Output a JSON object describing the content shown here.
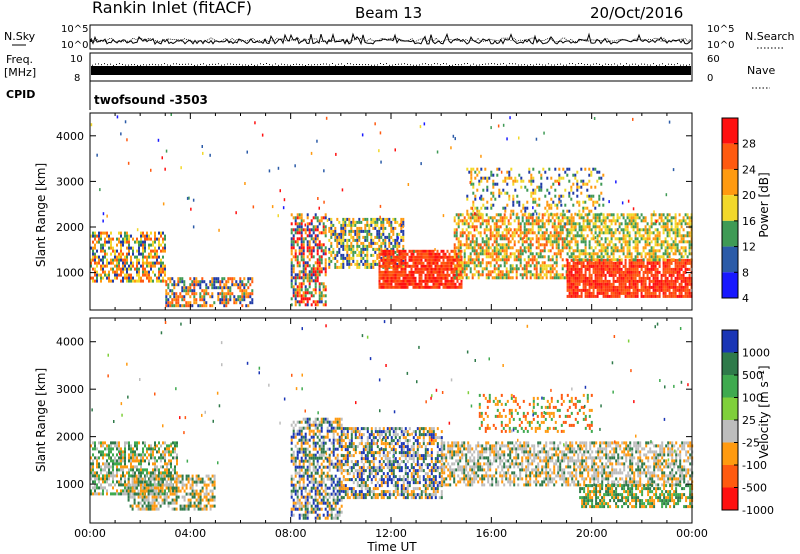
{
  "header": {
    "station": "Rankin Inlet (fitACF)",
    "beam": "Beam 13",
    "date": "20/Oct/2016"
  },
  "top_panels": {
    "nsky_label": "N.Sky",
    "nsearch_label": "N.Search",
    "nsky_ticks": [
      "10^5",
      "10^0"
    ],
    "nsearch_ticks": [
      "10^5",
      "10^0"
    ],
    "freq_label": "Freq.",
    "freq_unit": "[MHz]",
    "freq_ticks": [
      "10",
      "8"
    ],
    "nave_label": "Nave",
    "nave_ticks": [
      "60",
      "0"
    ],
    "cpid_label": "CPID",
    "cpid_value": "twofsound -3503"
  },
  "chart_data": [
    {
      "type": "heatmap",
      "title": "",
      "xlabel": "",
      "ylabel": "Slant Range [km]",
      "xlim": [
        0,
        24
      ],
      "ylim": [
        180,
        4500
      ],
      "y_ticks": [
        "4000",
        "3000",
        "2000",
        "1000"
      ],
      "colorbar": {
        "label": "Power [dB]",
        "ticks": [
          "28",
          "24",
          "20",
          "16",
          "12",
          "8",
          "4"
        ],
        "colors": [
          "#ff1010",
          "#ff5a10",
          "#ff9a10",
          "#f2d82a",
          "#3f9a55",
          "#2b5ba8",
          "#1818ff"
        ]
      },
      "regions": [
        {
          "x": [
            0.0,
            3.0
          ],
          "y": [
            800,
            1900
          ],
          "value": "mixed",
          "palette": [
            "#ff9a10",
            "#3f9a55",
            "#ff5a10",
            "#f2d82a",
            "#1f3aa8"
          ]
        },
        {
          "x": [
            3.0,
            6.5
          ],
          "y": [
            250,
            900
          ],
          "value": "mixed",
          "palette": [
            "#ff5a10",
            "#1f3aa8",
            "#3f9a55",
            "#ff9a10"
          ]
        },
        {
          "x": [
            8.0,
            9.4
          ],
          "y": [
            300,
            2300
          ],
          "value": "mixed",
          "palette": [
            "#1f3aa8",
            "#3f9a55",
            "#ff9a10",
            "#ff1010"
          ]
        },
        {
          "x": [
            9.5,
            12.5
          ],
          "y": [
            1100,
            2200
          ],
          "value": "mixed",
          "palette": [
            "#3f9a55",
            "#f2d82a",
            "#1f3aa8",
            "#ff9a10"
          ]
        },
        {
          "x": [
            11.5,
            14.8
          ],
          "y": [
            700,
            1500
          ],
          "value": "strong",
          "palette": [
            "#ff1010",
            "#ff5a10",
            "#ff3a10"
          ]
        },
        {
          "x": [
            14.5,
            19.0
          ],
          "y": [
            900,
            2300
          ],
          "value": "mixed",
          "palette": [
            "#3f9a55",
            "#ff9a10",
            "#f2d82a",
            "#ff5a10"
          ]
        },
        {
          "x": [
            19.0,
            24.0
          ],
          "y": [
            500,
            1300
          ],
          "value": "strong",
          "palette": [
            "#ff1010",
            "#ff3a10",
            "#ff5a10"
          ]
        },
        {
          "x": [
            19.0,
            24.0
          ],
          "y": [
            1300,
            2300
          ],
          "value": "mixed",
          "palette": [
            "#3f9a55",
            "#ff9a10",
            "#f2d82a"
          ]
        },
        {
          "x": [
            15.0,
            20.5
          ],
          "y": [
            2300,
            3300
          ],
          "value": "sparse",
          "palette": [
            "#3f9a55",
            "#ff9a10",
            "#f2d82a",
            "#1f3aa8"
          ]
        }
      ]
    },
    {
      "type": "heatmap",
      "title": "",
      "xlabel": "Time UT",
      "ylabel": "Slant Range [km]",
      "xlim": [
        0,
        24
      ],
      "ylim": [
        180,
        4500
      ],
      "x_ticks": [
        "00:00",
        "04:00",
        "08:00",
        "12:00",
        "16:00",
        "20:00",
        "00:00"
      ],
      "y_ticks": [
        "4000",
        "3000",
        "2000",
        "1000"
      ],
      "colorbar": {
        "label": "Velocity [m s⁻¹]",
        "ticks": [
          "1000",
          "500",
          "100",
          "25",
          "-25",
          "-100",
          "-500",
          "-1000"
        ],
        "colors": [
          "#1a35b5",
          "#2f7a4a",
          "#3faa4f",
          "#7fcf3a",
          "#bdbdbd",
          "#ff9a10",
          "#ff5a10",
          "#ff1010"
        ]
      },
      "regions": [
        {
          "x": [
            0.0,
            3.5
          ],
          "y": [
            800,
            1900
          ],
          "value": "mixed",
          "palette": [
            "#ff9a10",
            "#3faa4f",
            "#bdbdbd",
            "#2f7a4a"
          ]
        },
        {
          "x": [
            1.5,
            5.0
          ],
          "y": [
            500,
            1200
          ],
          "value": "mixed",
          "palette": [
            "#ff9a10",
            "#bdbdbd",
            "#2f7a4a"
          ]
        },
        {
          "x": [
            8.0,
            10.0
          ],
          "y": [
            300,
            2400
          ],
          "value": "mixed",
          "palette": [
            "#1a35b5",
            "#2f7a4a",
            "#ff9a10",
            "#bdbdbd"
          ]
        },
        {
          "x": [
            10.0,
            14.0
          ],
          "y": [
            700,
            2200
          ],
          "value": "mixed",
          "palette": [
            "#1a35b5",
            "#ff9a10",
            "#2f7a4a",
            "#bdbdbd"
          ]
        },
        {
          "x": [
            14.0,
            24.0
          ],
          "y": [
            1000,
            1900
          ],
          "value": "mixed",
          "palette": [
            "#bdbdbd",
            "#ff9a10",
            "#bdbdbd",
            "#2f7a4a"
          ]
        },
        {
          "x": [
            19.5,
            24.0
          ],
          "y": [
            500,
            1000
          ],
          "value": "mixed",
          "palette": [
            "#2f7a4a",
            "#3faa4f",
            "#ff9a10"
          ]
        },
        {
          "x": [
            15.5,
            20.0
          ],
          "y": [
            2100,
            2900
          ],
          "value": "sparse",
          "palette": [
            "#ff5a10",
            "#ff9a10",
            "#3faa4f"
          ]
        }
      ]
    }
  ]
}
